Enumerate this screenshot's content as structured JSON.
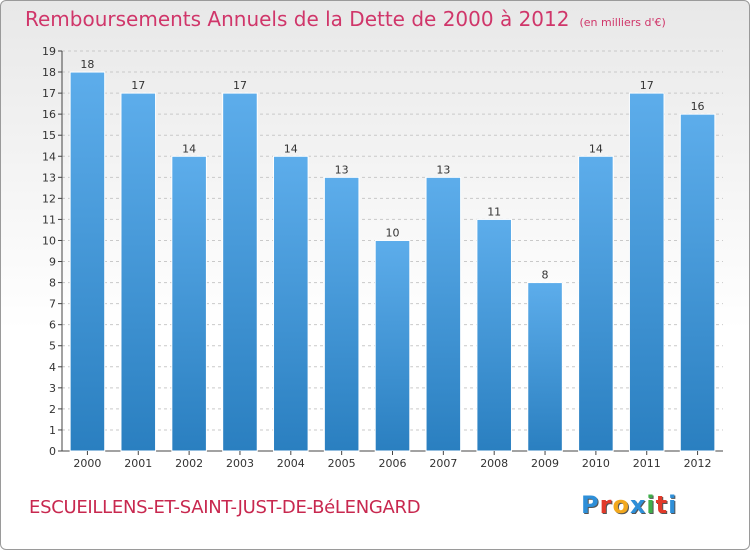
{
  "header": {
    "title": "Remboursements Annuels de la Dette de 2000 à 2012",
    "unit": "(en milliers d'€)"
  },
  "footer": {
    "commune": "ESCUEILLENS-ET-SAINT-JUST-DE-BéLENGARD",
    "logo_text": "Proxiti",
    "logo_colors": [
      "#2e8fd8",
      "#e23a2a",
      "#f2a81d",
      "#2e8fd8",
      "#3fae49",
      "#e23a2a",
      "#2e8fd8"
    ]
  },
  "colors": {
    "bar_light": "#5dadeb",
    "bar_dark": "#2a7fc0",
    "grid": "#c9c9c9",
    "axis": "#444444"
  },
  "chart_data": {
    "type": "bar",
    "categories": [
      "2000",
      "2001",
      "2002",
      "2003",
      "2004",
      "2005",
      "2006",
      "2007",
      "2008",
      "2009",
      "2010",
      "2011",
      "2012"
    ],
    "values": [
      18,
      17,
      14,
      17,
      14,
      13,
      10,
      13,
      11,
      8,
      14,
      17,
      16
    ],
    "ylim": [
      0,
      19
    ],
    "yticks": [
      0,
      1,
      2,
      3,
      4,
      5,
      6,
      7,
      8,
      9,
      10,
      11,
      12,
      13,
      14,
      15,
      16,
      17,
      18,
      19
    ],
    "grid": true,
    "data_labels": true
  }
}
